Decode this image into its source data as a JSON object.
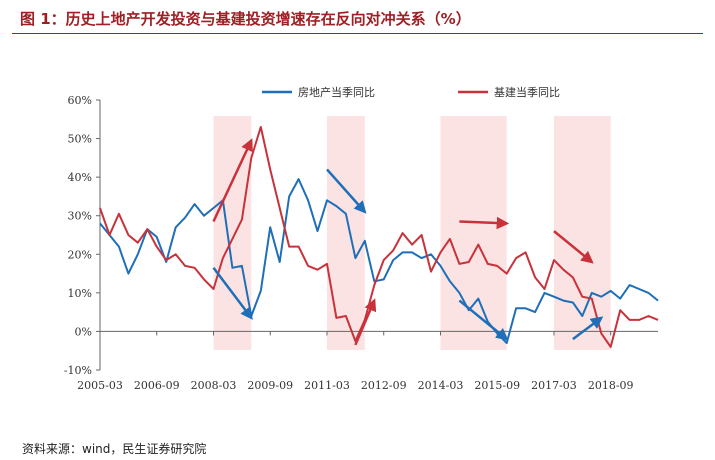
{
  "title": "图 1：历史上地产开发投资与基建投资增速存在反向对冲关系（%）",
  "source": "资料来源：wind，民生证券研究院",
  "colors": {
    "re": "#1f6fb8",
    "infra": "#c8323a",
    "band": "#fbe3e3",
    "title": "#9e1f24"
  },
  "chart_data": {
    "type": "line",
    "x_tick_labels": [
      "2005-03",
      "2006-09",
      "2008-03",
      "2009-09",
      "2011-03",
      "2012-09",
      "2014-03",
      "2015-09",
      "2017-03",
      "2018-09"
    ],
    "y_tick_labels": [
      "-10%",
      "0%",
      "10%",
      "20%",
      "30%",
      "40%",
      "50%",
      "60%"
    ],
    "ylim": [
      -10,
      60
    ],
    "start_quarter": "2005-03",
    "legend": {
      "placement": "top-center"
    },
    "series": [
      {
        "name": "房地产当季同比",
        "values": [
          28,
          25,
          22,
          15,
          20,
          26.5,
          24.5,
          18,
          27,
          29.5,
          33,
          30,
          32,
          34,
          16.5,
          17,
          4,
          10.5,
          27,
          18,
          35,
          39.5,
          34,
          26,
          34,
          32.5,
          30.5,
          19,
          23.5,
          13,
          13.5,
          18.5,
          20.5,
          20.5,
          19,
          20,
          17,
          13,
          10,
          5.5,
          8.5,
          2.5,
          -0.5,
          -3,
          6,
          6,
          5,
          10,
          9,
          8,
          7.5,
          4,
          10,
          9,
          10.5,
          8.5,
          12,
          11,
          10,
          8
        ]
      },
      {
        "name": "基建当季同比",
        "values": [
          32,
          25,
          30.5,
          25,
          23,
          26.5,
          22,
          18.5,
          20,
          17,
          16.5,
          13.5,
          11,
          19,
          24,
          29,
          45,
          53,
          42,
          32,
          22,
          22,
          17,
          16,
          17.5,
          3.5,
          4,
          -2.5,
          3,
          12,
          18.5,
          21,
          25.5,
          22.5,
          25,
          15.5,
          20.5,
          24,
          17.5,
          18,
          22.5,
          17.5,
          17,
          15,
          19,
          20.5,
          14,
          11,
          18.5,
          16,
          14,
          9,
          8.5,
          -0.5,
          -4,
          5.5,
          3,
          3,
          4,
          3
        ]
      }
    ],
    "shaded_bands": [
      {
        "from": "2008-03",
        "to": "2009-03"
      },
      {
        "from": "2011-03",
        "to": "2012-03"
      },
      {
        "from": "2014-03",
        "to": "2015-12"
      },
      {
        "from": "2017-03",
        "to": "2018-09"
      }
    ],
    "trend_arrows": [
      {
        "series": "基建当季同比",
        "from": {
          "x": "2008-03",
          "y": 28.5
        },
        "to": {
          "x": "2009-03",
          "y": 49.5
        }
      },
      {
        "series": "房地产当季同比",
        "from": {
          "x": "2008-03",
          "y": 16.5
        },
        "to": {
          "x": "2009-03",
          "y": 3.5
        }
      },
      {
        "series": "房地产当季同比",
        "from": {
          "x": "2011-03",
          "y": 42
        },
        "to": {
          "x": "2012-03",
          "y": 31
        }
      },
      {
        "series": "基建当季同比",
        "from": {
          "x": "2011-12",
          "y": -3.5
        },
        "to": {
          "x": "2012-06",
          "y": 8
        }
      },
      {
        "series": "基建当季同比",
        "from": {
          "x": "2014-09",
          "y": 28.5
        },
        "to": {
          "x": "2015-12",
          "y": 28
        }
      },
      {
        "series": "房地产当季同比",
        "from": {
          "x": "2014-09",
          "y": 8
        },
        "to": {
          "x": "2015-12",
          "y": -2
        }
      },
      {
        "series": "基建当季同比",
        "from": {
          "x": "2017-03",
          "y": 26
        },
        "to": {
          "x": "2018-03",
          "y": 18
        }
      },
      {
        "series": "房地产当季同比",
        "from": {
          "x": "2017-09",
          "y": -2
        },
        "to": {
          "x": "2018-06",
          "y": 3.5
        }
      }
    ]
  }
}
